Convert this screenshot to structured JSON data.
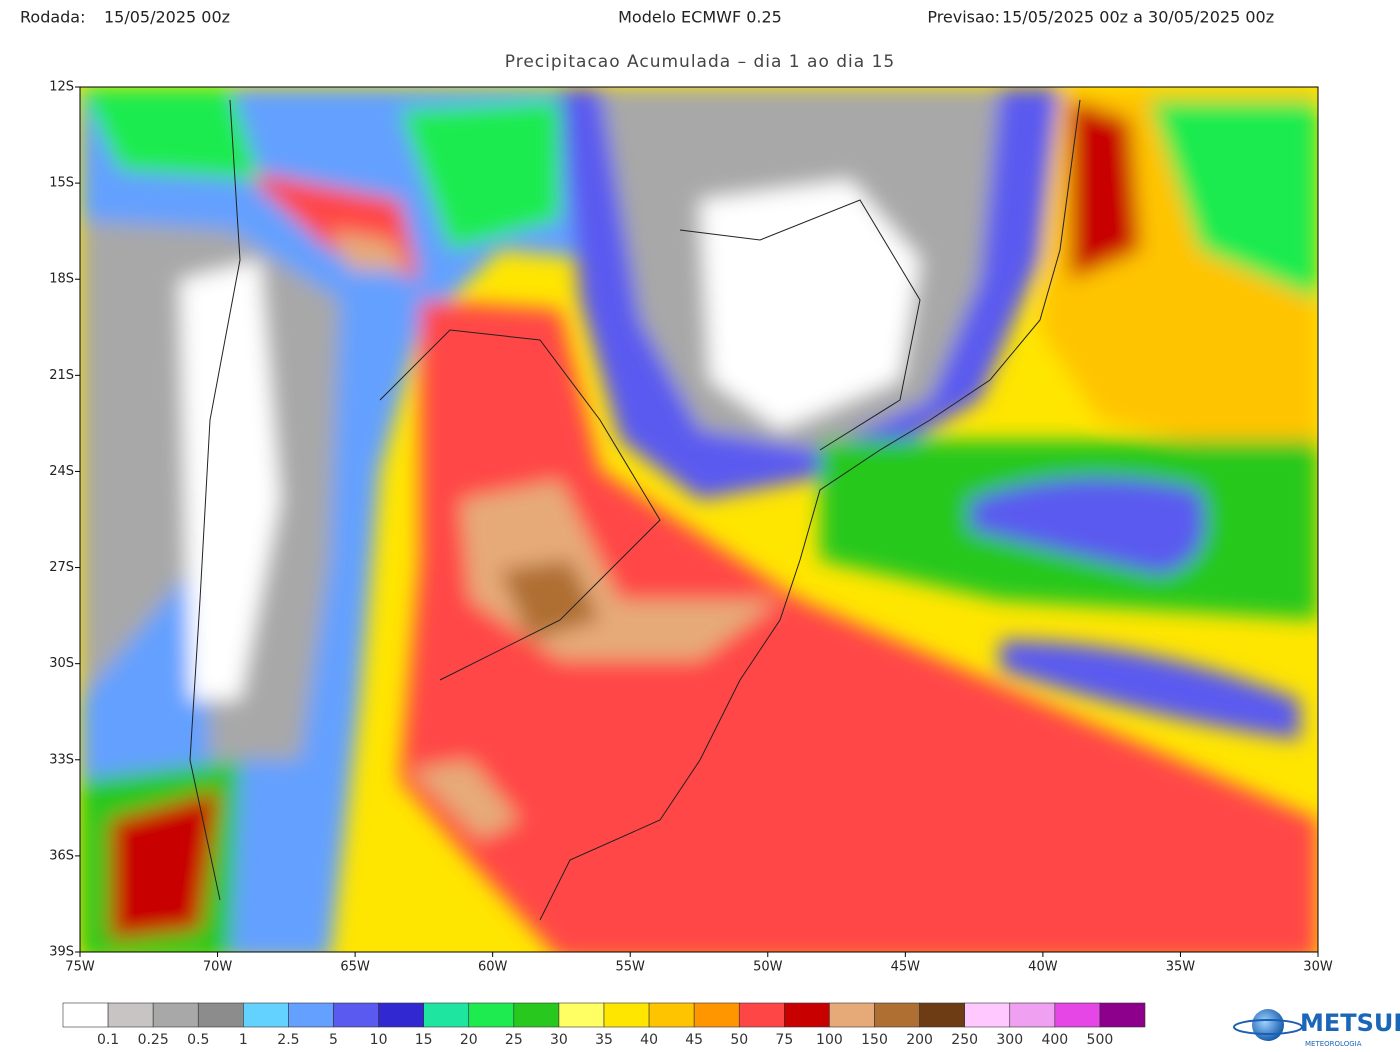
{
  "header": {
    "run_label": "Rodada:",
    "run_value": "15/05/2025 00z",
    "model": "Modelo ECMWF 0.25",
    "forecast_label": "Previsao:",
    "forecast_value": "15/05/2025 00z a 30/05/2025 00z"
  },
  "subtitle": "Precipitacao Acumulada – dia 1 ao dia 15",
  "map": {
    "lat_labels": [
      "12S",
      "15S",
      "18S",
      "21S",
      "24S",
      "27S",
      "30S",
      "33S",
      "36S",
      "39S"
    ],
    "lon_labels": [
      "75W",
      "70W",
      "65W",
      "60W",
      "55W",
      "50W",
      "45W",
      "40W",
      "35W",
      "30W"
    ]
  },
  "legend": {
    "colors": [
      "#ffffff",
      "#c8c4c4",
      "#a8a8a8",
      "#8c8c8c",
      "#64d2ff",
      "#64a0ff",
      "#5a5af0",
      "#3228d2",
      "#1ee6a0",
      "#1eeb50",
      "#28c81e",
      "#ffff64",
      "#ffe600",
      "#ffc400",
      "#ff9600",
      "#ff4646",
      "#c80000",
      "#e6aa78",
      "#af6e32",
      "#6e3c14",
      "#ffc8ff",
      "#f0a0f0",
      "#e646e6",
      "#8c008c"
    ],
    "labels": [
      "0.1",
      "0.25",
      "0.5",
      "1",
      "2.5",
      "5",
      "10",
      "15",
      "20",
      "25",
      "30",
      "35",
      "40",
      "45",
      "50",
      "75",
      "100",
      "150",
      "200",
      "250",
      "300",
      "400",
      "500"
    ]
  },
  "logo": {
    "name": "METSUL",
    "tagline": "METEOROLOGIA"
  }
}
